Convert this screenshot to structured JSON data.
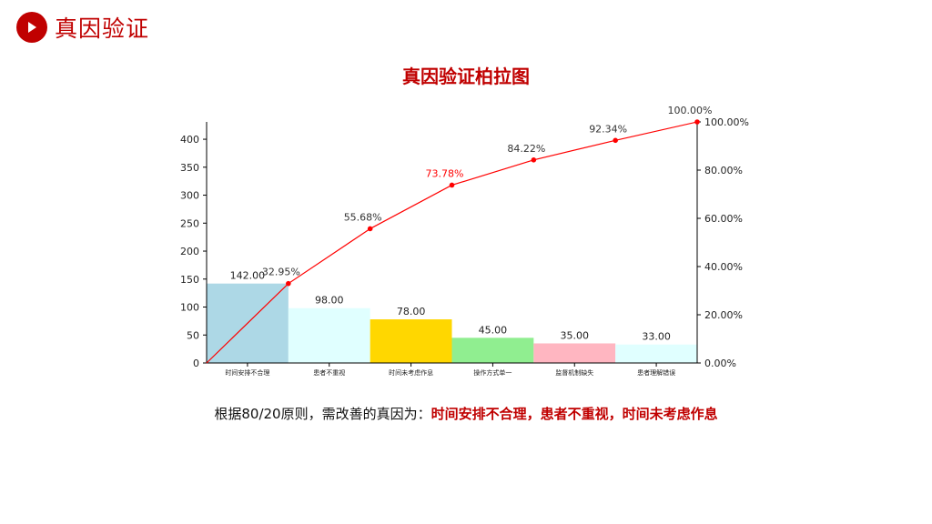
{
  "header": {
    "title": "真因验证",
    "icon": "play-icon"
  },
  "chart_data": {
    "type": "bar",
    "title": "真因验证柏拉图",
    "categories": [
      "时间安排不合理",
      "患者不重视",
      "时间未考虑作息",
      "操作方式单一",
      "监督机制缺失",
      "患者理解错误"
    ],
    "values": [
      142,
      98,
      78,
      45,
      35,
      33
    ],
    "value_labels": [
      "142.00",
      "98.00",
      "78.00",
      "45.00",
      "35.00",
      "33.00"
    ],
    "bar_colors": [
      "#add8e6",
      "#e0ffff",
      "#ffd700",
      "#90ee90",
      "#ffb6c1",
      "#e0ffff"
    ],
    "cumulative": [
      32.95,
      55.68,
      73.78,
      84.22,
      92.34,
      100.0
    ],
    "cumulative_labels": [
      "32.95%",
      "55.68%",
      "73.78%",
      "84.22%",
      "92.34%",
      "100.00%"
    ],
    "cumulative_label_colors": [
      "#333333",
      "#333333",
      "#ff0000",
      "#333333",
      "#333333",
      "#333333"
    ],
    "line_color": "#ff0000",
    "ylim_left": [
      0,
      431
    ],
    "yticks_left": [
      0,
      50,
      100,
      150,
      200,
      250,
      300,
      350,
      400
    ],
    "ylim_right": [
      0,
      100
    ],
    "yticks_right": [
      "0.00%",
      "20.00%",
      "40.00%",
      "60.00%",
      "80.00%",
      "100.00%"
    ],
    "grid": false,
    "legend": "none"
  },
  "conclusion": {
    "prefix": "根据80/20原则，需改善的真因为：",
    "highlight": "时间安排不合理，患者不重视，时间未考虑作息"
  }
}
